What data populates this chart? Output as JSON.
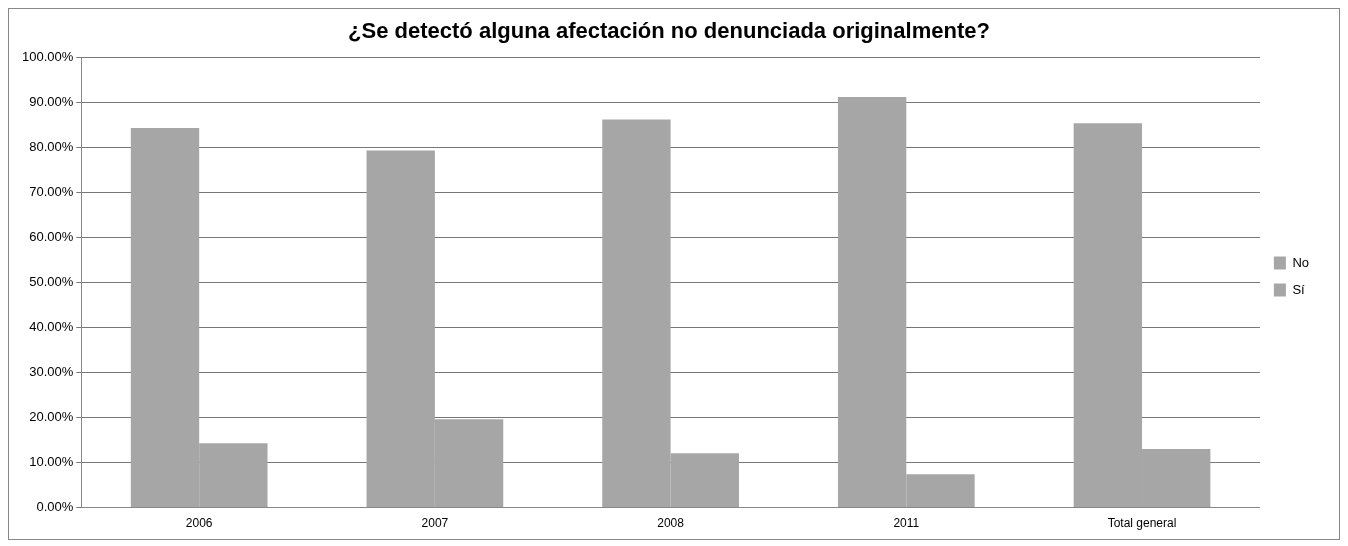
{
  "chart_data": {
    "type": "bar",
    "title": "¿Se detectó alguna afectación no denunciada originalmente?",
    "categories": [
      "2006",
      "2007",
      "2008",
      "2011",
      "Total general"
    ],
    "series": [
      {
        "name": "No",
        "color": "#a6a6a6",
        "values": [
          84.3,
          79.3,
          86.2,
          91.2,
          85.4
        ]
      },
      {
        "name": "Sí",
        "color": "#a6a6a6",
        "values": [
          14.3,
          19.6,
          12.1,
          7.4,
          13.0
        ]
      }
    ],
    "ylim": [
      0,
      100
    ],
    "yticks": [
      {
        "value": 0,
        "label": "0.00%"
      },
      {
        "value": 10,
        "label": "10.00%"
      },
      {
        "value": 20,
        "label": "20.00%"
      },
      {
        "value": 30,
        "label": "30.00%"
      },
      {
        "value": 40,
        "label": "40.00%"
      },
      {
        "value": 50,
        "label": "50.00%"
      },
      {
        "value": 60,
        "label": "60.00%"
      },
      {
        "value": 70,
        "label": "70.00%"
      },
      {
        "value": 80,
        "label": "80.00%"
      },
      {
        "value": 90,
        "label": "90.00%"
      },
      {
        "value": 100,
        "label": "100.00%"
      }
    ],
    "grid": "y",
    "legend": "right"
  }
}
